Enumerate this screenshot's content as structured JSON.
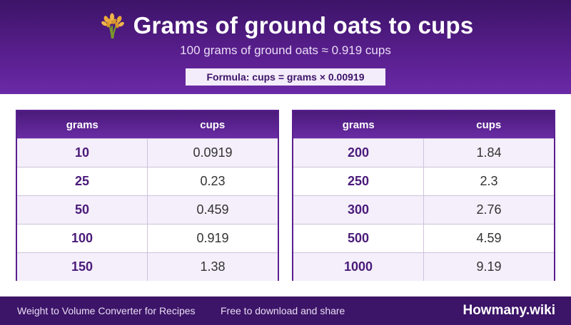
{
  "header": {
    "icon": "sheaf-of-rice-icon",
    "title": "Grams of ground oats to cups",
    "subtitle": "100 grams of ground oats ≈ 0.919 cups",
    "formula": "Formula: cups = grams × 0.00919"
  },
  "tables": [
    {
      "headers": [
        "grams",
        "cups"
      ],
      "rows": [
        {
          "grams": "10",
          "cups": "0.0919"
        },
        {
          "grams": "25",
          "cups": "0.23"
        },
        {
          "grams": "50",
          "cups": "0.459"
        },
        {
          "grams": "100",
          "cups": "0.919"
        },
        {
          "grams": "150",
          "cups": "1.38"
        }
      ]
    },
    {
      "headers": [
        "grams",
        "cups"
      ],
      "rows": [
        {
          "grams": "200",
          "cups": "1.84"
        },
        {
          "grams": "250",
          "cups": "2.3"
        },
        {
          "grams": "300",
          "cups": "2.76"
        },
        {
          "grams": "500",
          "cups": "4.59"
        },
        {
          "grams": "1000",
          "cups": "9.19"
        }
      ]
    }
  ],
  "footer": {
    "left": "Weight to Volume Converter for Recipes",
    "middle": "Free to download and share",
    "brand": "Howmany.wiki"
  },
  "colors": {
    "header_dark": "#3c1468",
    "header_mid": "#5a1f8f",
    "accent_text": "#4a1a7a",
    "row_alt": "#f4effa"
  }
}
